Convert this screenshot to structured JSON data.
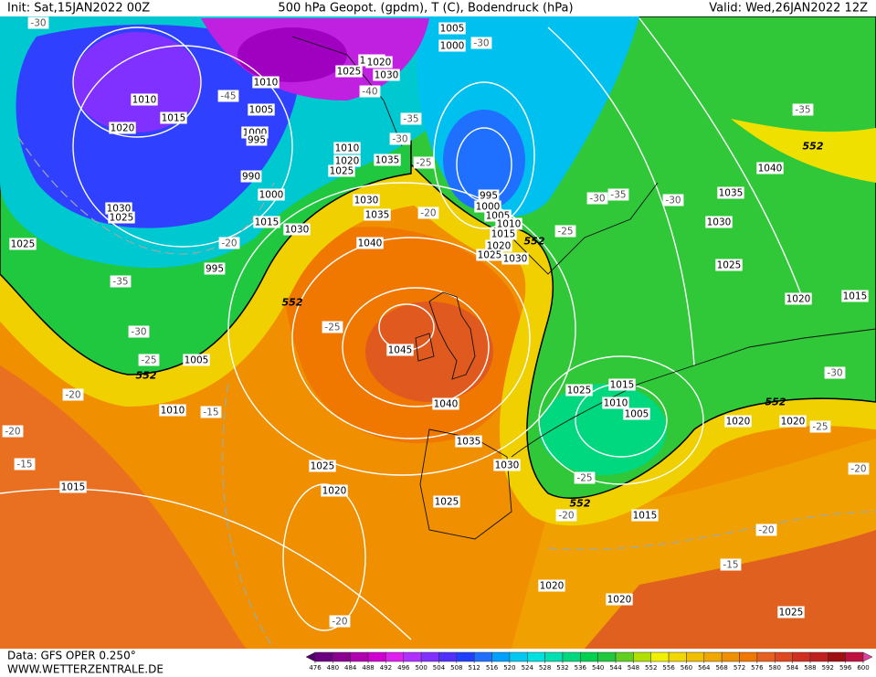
{
  "header": {
    "init": "Init: Sat,15JAN2022 00Z",
    "title": "500 hPa Geopot. (gpdm), T (C), Bodendruck (hPa)",
    "valid": "Valid: Wed,26JAN2022 12Z"
  },
  "footer": {
    "data_source": "Data: GFS OPER 0.250°",
    "website": "WWW.WETTERZENTRALE.DE"
  },
  "pressure_labels": [
    1005,
    1000,
    1015,
    1020,
    1025,
    1030,
    1010,
    1010,
    1015,
    1005,
    1020,
    1000,
    995,
    1010,
    1020,
    1035,
    1025,
    990,
    1000,
    1030,
    995,
    1000,
    1005,
    1010,
    1015,
    1020,
    1025,
    1030,
    1035,
    1015,
    1030,
    1040,
    1030,
    1025,
    1025,
    995,
    1045,
    1040,
    1035,
    1005,
    1010,
    1025,
    1020,
    1030,
    1025,
    1015,
    1040,
    1035,
    1030,
    1025,
    1020,
    1015,
    1025,
    1015,
    1010,
    1005,
    1020,
    1020,
    1015,
    1020,
    1020,
    1025
  ],
  "temperature_labels": [
    -30,
    -45,
    -40,
    -35,
    -30,
    -25,
    -20,
    -30,
    -25,
    -30,
    -35,
    -30,
    -35,
    -20,
    -35,
    -30,
    -25,
    -25,
    -20,
    -15,
    -20,
    -15,
    -30,
    -25,
    -20,
    -25,
    -20,
    -20,
    -15,
    -20
  ],
  "height_labels": [
    552,
    552,
    552,
    552,
    552,
    552
  ],
  "colorbar": {
    "ticks": [
      476,
      480,
      484,
      488,
      492,
      496,
      500,
      504,
      508,
      512,
      516,
      520,
      524,
      528,
      532,
      536,
      540,
      544,
      548,
      552,
      556,
      560,
      564,
      568,
      572,
      576,
      580,
      584,
      588,
      592,
      596,
      600
    ],
    "colors": [
      "#50006a",
      "#6a0080",
      "#8a0090",
      "#b000b0",
      "#d000d0",
      "#e020f0",
      "#b030ff",
      "#8030ff",
      "#5030ff",
      "#2040ff",
      "#2070ff",
      "#00a0ff",
      "#00c8f0",
      "#00e0e0",
      "#00e0b0",
      "#00d880",
      "#00d050",
      "#20c840",
      "#60d020",
      "#b0e000",
      "#f0f000",
      "#f0d800",
      "#f0c000",
      "#f0a800",
      "#f09000",
      "#f07800",
      "#e86020",
      "#e04820",
      "#d03020",
      "#c02020",
      "#a01010",
      "#c01040",
      "#e040a0"
    ]
  }
}
